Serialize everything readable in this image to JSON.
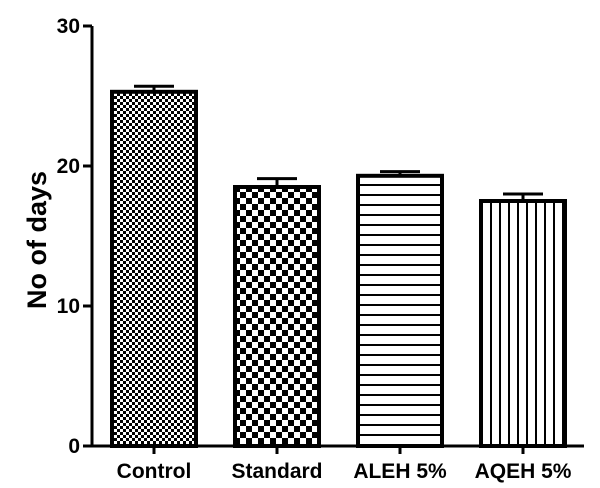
{
  "chart_data": {
    "type": "bar",
    "title": "",
    "xlabel": "",
    "ylabel": "No of days",
    "ylim": [
      0,
      30
    ],
    "yticks": [
      "0",
      "10",
      "20",
      "30"
    ],
    "grid": false,
    "categories": [
      "Control",
      "Standard",
      "ALEH 5%",
      "AQEH 5%"
    ],
    "values": [
      25.3,
      18.5,
      19.3,
      17.5
    ],
    "errors": [
      0.4,
      0.6,
      0.3,
      0.5
    ],
    "patterns": [
      "fine-checker",
      "checkerboard",
      "horizontal-lines",
      "vertical-lines"
    ],
    "bar_color": "#000000",
    "background_color": "#ffffff"
  }
}
